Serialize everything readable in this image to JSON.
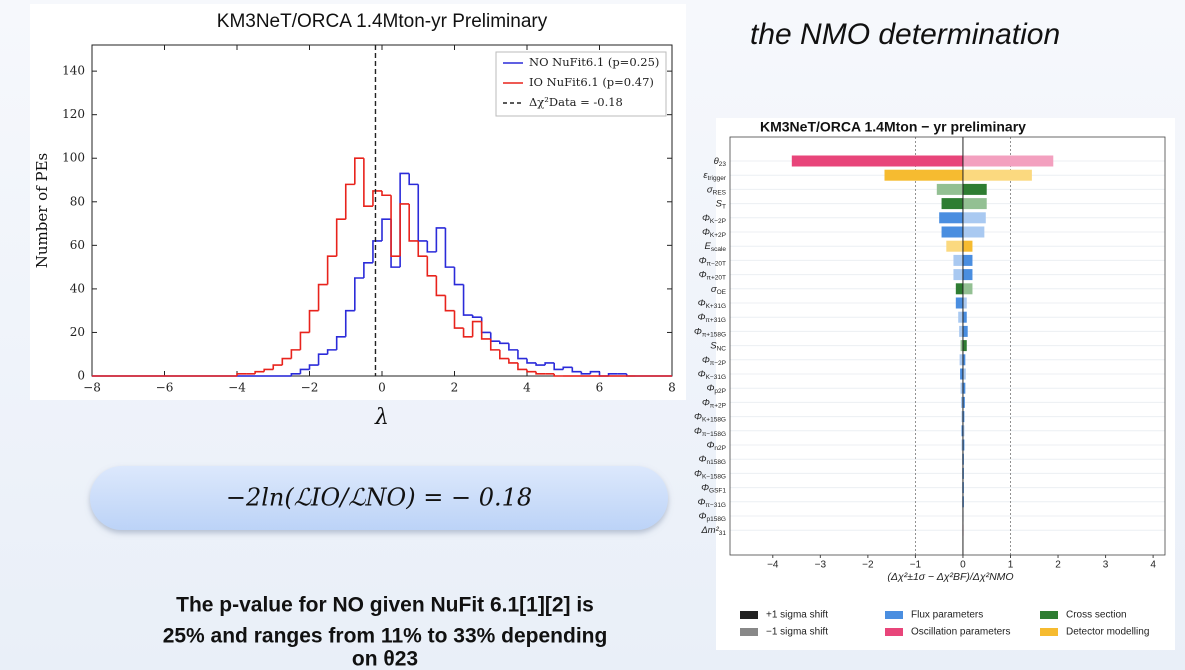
{
  "header_text": "the NMO determination",
  "formula": "−2ln(ℒIO/ℒNO) = − 0.18",
  "caption_lines": [
    "The p-value for NO given NuFit 6.1[1][2] is",
    "25% and ranges from 11% to 33% depending",
    "on θ23"
  ],
  "chart_data": [
    {
      "type": "histogram",
      "title": "KM3NeT/ORCA 1.4Mton-yr Preliminary",
      "x_label": "λ",
      "y_label": "Number of PEs",
      "bins": [
        -4,
        -3.75,
        -3.5,
        -3.25,
        -3,
        -2.75,
        -2.5,
        -2.25,
        -2,
        -1.75,
        -1.5,
        -1.25,
        -1,
        -0.75,
        -0.5,
        -0.25,
        0,
        0.25,
        0.5,
        0.75,
        1,
        1.25,
        1.5,
        1.75,
        2,
        2.25,
        2.5,
        2.75,
        3,
        3.25,
        3.5,
        3.75,
        4,
        4.25,
        4.5,
        4.75,
        5,
        5.25,
        5.5,
        5.75,
        6,
        6.25,
        6.5,
        6.75,
        7
      ],
      "series": [
        {
          "name": "NO NuFit6.1 (p=0.25)",
          "color": "#2b2bd9",
          "values": [
            0,
            0,
            0,
            0,
            0,
            0,
            1,
            3,
            5,
            10,
            12,
            18,
            30,
            45,
            52,
            62,
            72,
            50,
            93,
            88,
            62,
            57,
            68,
            50,
            42,
            28,
            27,
            20,
            16,
            15,
            12,
            8,
            6,
            5,
            6,
            3,
            4,
            2,
            1,
            2,
            0,
            1,
            1,
            0
          ]
        },
        {
          "name": "IO NuFit6.1 (p=0.47)",
          "color": "#e8231c",
          "values": [
            1,
            1,
            2,
            3,
            5,
            8,
            12,
            20,
            30,
            42,
            55,
            72,
            88,
            100,
            78,
            85,
            83,
            55,
            79,
            62,
            55,
            46,
            37,
            30,
            22,
            18,
            25,
            17,
            12,
            8,
            6,
            3,
            2,
            1,
            1,
            0,
            0,
            0,
            0,
            0,
            0,
            0,
            0,
            0
          ]
        }
      ],
      "vline": {
        "value": -0.18,
        "label": "Δχ²Data = -0.18",
        "color": "#222222"
      },
      "xlim": [
        -8,
        8
      ],
      "xticks": [
        {
          "value": -8,
          "label": "−8"
        },
        {
          "value": -6,
          "label": "−6"
        },
        {
          "value": -4,
          "label": "−4"
        },
        {
          "value": -2,
          "label": "−2"
        },
        0,
        2,
        4,
        6,
        8
      ],
      "ylim": [
        0,
        152
      ],
      "yticks": [
        0,
        20,
        40,
        60,
        80,
        100,
        120,
        140
      ],
      "legend": "upper right"
    },
    {
      "type": "bar",
      "orientation": "horizontal",
      "title": "KM3NeT/ORCA 1.4Mton − yr preliminary",
      "x_label": "(Δχ²±1σ − Δχ²BF)/Δχ²NMO",
      "categories": [
        {
          "symbol": "θ",
          "sub": "23"
        },
        {
          "symbol": "ε",
          "sub": "trigger"
        },
        {
          "symbol": "σ",
          "sub": "RES"
        },
        {
          "symbol": "S",
          "sub": "T"
        },
        {
          "symbol": "Φ",
          "sub": "K−2P"
        },
        {
          "symbol": "Φ",
          "sub": "K+2P"
        },
        {
          "symbol": "E",
          "sub": "scale"
        },
        {
          "symbol": "Φ",
          "sub": "π−20T"
        },
        {
          "symbol": "Φ",
          "sub": "π+20T"
        },
        {
          "symbol": "σ",
          "sub": "OE"
        },
        {
          "symbol": "Φ",
          "sub": "K+31G"
        },
        {
          "symbol": "Φ",
          "sub": "π+31G"
        },
        {
          "symbol": "Φ",
          "sub": "π+158G"
        },
        {
          "symbol": "S",
          "sub": "NC"
        },
        {
          "symbol": "Φ",
          "sub": "π−2P"
        },
        {
          "symbol": "Φ",
          "sub": "K−31G"
        },
        {
          "symbol": "Φ",
          "sub": "p2P"
        },
        {
          "symbol": "Φ",
          "sub": "π+2P"
        },
        {
          "symbol": "Φ",
          "sub": "K+158G"
        },
        {
          "symbol": "Φ",
          "sub": "π−158G"
        },
        {
          "symbol": "Φ",
          "sub": "n2P"
        },
        {
          "symbol": "Φ",
          "sub": "n158G"
        },
        {
          "symbol": "Φ",
          "sub": "K−158G"
        },
        {
          "symbol": "Φ",
          "sub": "GSF1"
        },
        {
          "symbol": "Φ",
          "sub": "π−31G"
        },
        {
          "symbol": "Φ",
          "sub": "p158G"
        },
        {
          "symbol": "Δm²",
          "sub": "31"
        }
      ],
      "category_groups": [
        1,
        3,
        2,
        2,
        0,
        0,
        3,
        0,
        0,
        2,
        0,
        0,
        0,
        2,
        0,
        0,
        0,
        0,
        0,
        0,
        0,
        0,
        0,
        0,
        0,
        0,
        1
      ],
      "groups": [
        {
          "name": "Flux parameters",
          "color": "#4a8ee0",
          "light_color": "#a9c9f1"
        },
        {
          "name": "Oscillation parameters",
          "color": "#e8457a",
          "light_color": "#f3a0bf"
        },
        {
          "name": "Cross section",
          "color": "#2e7d32",
          "light_color": "#93c093"
        },
        {
          "name": "Detector modelling",
          "color": "#f6bb30",
          "light_color": "#fbd97f"
        }
      ],
      "series": [
        {
          "name": "+1 sigma shift",
          "color": "#222222",
          "values": [
            -3.6,
            -1.65,
            0.5,
            -0.45,
            -0.5,
            -0.45,
            0.2,
            0.2,
            0.2,
            -0.15,
            -0.15,
            0.08,
            0.1,
            0.08,
            0.05,
            -0.06,
            0.05,
            0.04,
            0.03,
            -0.03,
            0.03,
            0.02,
            0.02,
            0.02,
            0.02,
            0.01,
            0.01
          ]
        },
        {
          "name": "−1 sigma shift",
          "color": "#888888",
          "values": [
            1.9,
            1.45,
            -0.55,
            0.5,
            0.48,
            0.45,
            -0.35,
            -0.2,
            -0.2,
            0.2,
            0.08,
            -0.1,
            -0.08,
            -0.05,
            -0.07,
            0.06,
            -0.05,
            -0.04,
            -0.03,
            0.03,
            -0.03,
            -0.02,
            -0.02,
            -0.02,
            -0.02,
            -0.01,
            -0.01
          ]
        }
      ],
      "ref_lines": [
        -1,
        1
      ],
      "xlim": [
        -4.9,
        4.25
      ],
      "xticks": [
        {
          "value": -4,
          "label": "−4"
        },
        {
          "value": -3,
          "label": "−3"
        },
        {
          "value": -2,
          "label": "−2"
        },
        {
          "value": -1,
          "label": "−1"
        },
        0,
        1,
        2,
        3,
        4
      ],
      "legend": "lower center"
    }
  ]
}
